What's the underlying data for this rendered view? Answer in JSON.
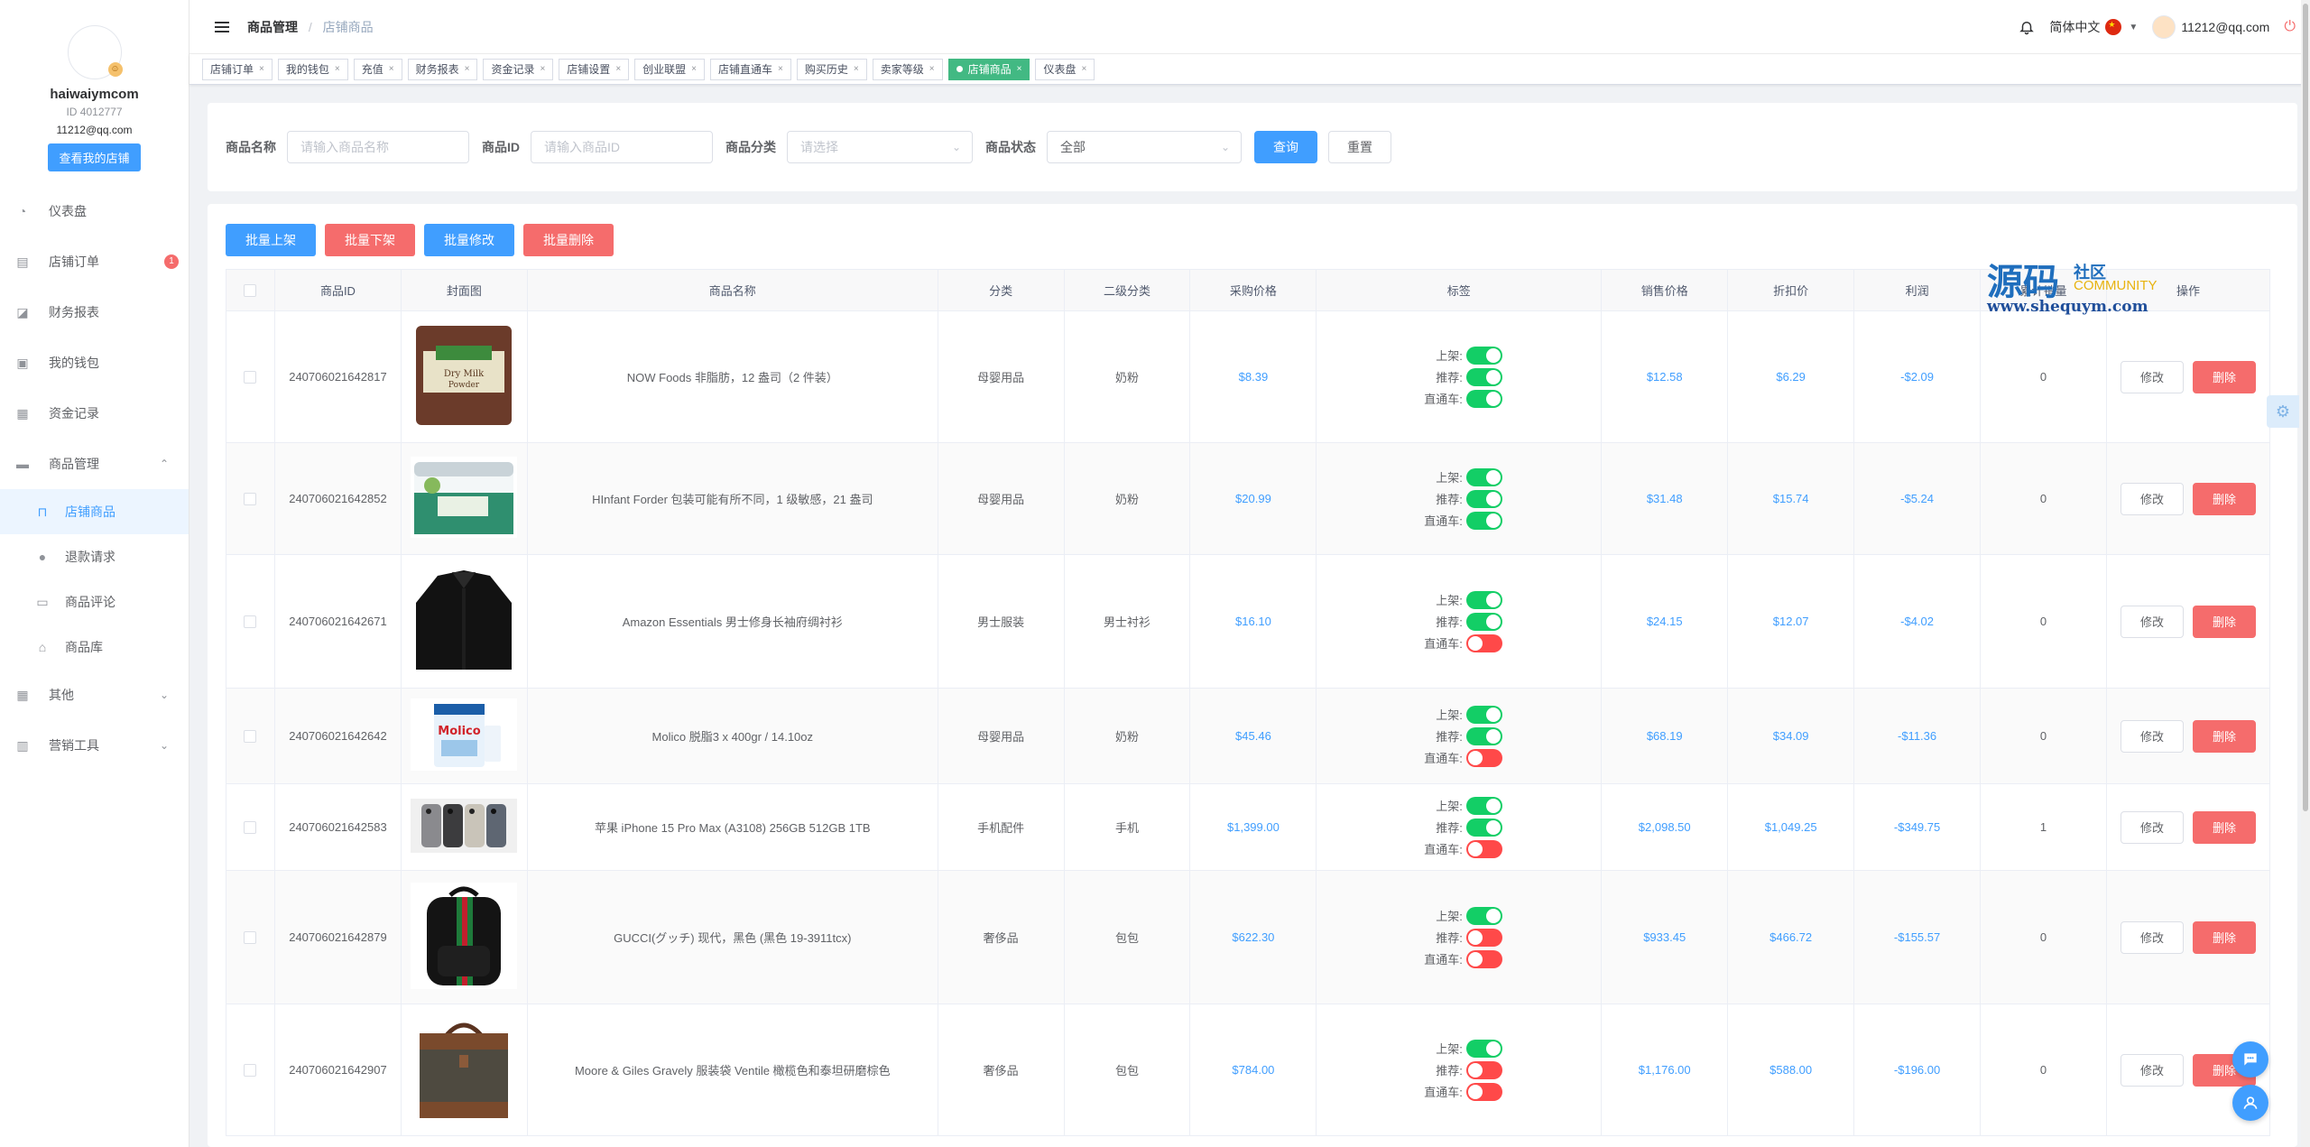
{
  "sidebar": {
    "username": "haiwaiymcom",
    "user_id": "ID 4012777",
    "email": "11212@qq.com",
    "shop_button": "查看我的店铺",
    "menu": [
      {
        "key": "dashboard",
        "label": "仪表盘",
        "icon": "dashboard-icon"
      },
      {
        "key": "orders",
        "label": "店铺订单",
        "icon": "orders-icon",
        "badge": "1"
      },
      {
        "key": "finance",
        "label": "财务报表",
        "icon": "chart-icon"
      },
      {
        "key": "wallet",
        "label": "我的钱包",
        "icon": "wallet-icon"
      },
      {
        "key": "funds",
        "label": "资金记录",
        "icon": "record-icon"
      },
      {
        "key": "products",
        "label": "商品管理",
        "icon": "briefcase-icon",
        "expanded": true
      }
    ],
    "submenu": [
      {
        "key": "shop-products",
        "label": "店铺商品",
        "icon": "bag-icon",
        "active": true
      },
      {
        "key": "refunds",
        "label": "退款请求",
        "icon": "alert-icon"
      },
      {
        "key": "reviews",
        "label": "商品评论",
        "icon": "comment-icon"
      },
      {
        "key": "library",
        "label": "商品库",
        "icon": "home-icon"
      }
    ],
    "menu_bottom": [
      {
        "key": "other",
        "label": "其他",
        "icon": "grid-icon"
      },
      {
        "key": "marketing",
        "label": "营销工具",
        "icon": "bar-chart-icon"
      }
    ]
  },
  "header": {
    "breadcrumb_1": "商品管理",
    "breadcrumb_sep": "/",
    "breadcrumb_2": "店铺商品",
    "language": "简体中文",
    "user_email": "11212@qq.com"
  },
  "tags": [
    {
      "label": "店铺订单",
      "active": false
    },
    {
      "label": "我的钱包",
      "active": false
    },
    {
      "label": "充值",
      "active": false
    },
    {
      "label": "财务报表",
      "active": false
    },
    {
      "label": "资金记录",
      "active": false
    },
    {
      "label": "店铺设置",
      "active": false
    },
    {
      "label": "创业联盟",
      "active": false
    },
    {
      "label": "店铺直通车",
      "active": false
    },
    {
      "label": "购买历史",
      "active": false
    },
    {
      "label": "卖家等级",
      "active": false
    },
    {
      "label": "店铺商品",
      "active": true
    },
    {
      "label": "仪表盘",
      "active": false
    }
  ],
  "search": {
    "name_label": "商品名称",
    "name_placeholder": "请输入商品名称",
    "id_label": "商品ID",
    "id_placeholder": "请输入商品ID",
    "category_label": "商品分类",
    "category_placeholder": "请选择",
    "status_label": "商品状态",
    "status_value": "全部",
    "query_button": "查询",
    "reset_button": "重置"
  },
  "batch": {
    "shelve": "批量上架",
    "unshelve": "批量下架",
    "edit": "批量修改",
    "delete": "批量删除"
  },
  "table": {
    "headers": {
      "id": "商品ID",
      "cover": "封面图",
      "name": "商品名称",
      "category": "分类",
      "subcategory": "二级分类",
      "purchase": "采购价格",
      "tags": "标签",
      "sale": "销售价格",
      "discount": "折扣价",
      "profit": "利润",
      "sold": "累计销量",
      "ops": "操作"
    },
    "switch_labels": {
      "on_shelf": "上架:",
      "recommend": "推荐:",
      "express": "直通车:"
    },
    "edit_label": "修改",
    "delete_label": "删除",
    "rows": [
      {
        "id": "240706021642817",
        "name": "NOW Foods 非脂肪，12 盎司（2 件装）",
        "category": "母婴用品",
        "subcategory": "奶粉",
        "purchase": "$8.39",
        "on_shelf": true,
        "recommend": true,
        "express": true,
        "sale": "$12.58",
        "discount": "$6.29",
        "profit": "-$2.09",
        "sold": "0",
        "thumb": "milk-powder-bag",
        "h": 146
      },
      {
        "id": "240706021642852",
        "name": "HInfant Forder 包装可能有所不同，1 级敏感，21 盎司",
        "category": "母婴用品",
        "subcategory": "奶粉",
        "purchase": "$20.99",
        "on_shelf": true,
        "recommend": true,
        "express": true,
        "sale": "$31.48",
        "discount": "$15.74",
        "profit": "-$5.24",
        "sold": "0",
        "thumb": "formula-tub",
        "h": 124
      },
      {
        "id": "240706021642671",
        "name": "Amazon Essentials 男士修身长袖府绸衬衫",
        "category": "男士服装",
        "subcategory": "男士衬衫",
        "purchase": "$16.10",
        "on_shelf": true,
        "recommend": true,
        "express": false,
        "sale": "$24.15",
        "discount": "$12.07",
        "profit": "-$4.02",
        "sold": "0",
        "thumb": "black-shirt",
        "h": 148
      },
      {
        "id": "240706021642642",
        "name": "Molico 脱脂3 x 400gr / 14.10oz",
        "category": "母婴用品",
        "subcategory": "奶粉",
        "purchase": "$45.46",
        "on_shelf": true,
        "recommend": true,
        "express": false,
        "sale": "$68.19",
        "discount": "$34.09",
        "profit": "-$11.36",
        "sold": "0",
        "thumb": "molico-can",
        "h": 106
      },
      {
        "id": "240706021642583",
        "name": "苹果 iPhone 15 Pro Max (A3108) 256GB 512GB 1TB",
        "category": "手机配件",
        "subcategory": "手机",
        "purchase": "$1,399.00",
        "on_shelf": true,
        "recommend": true,
        "express": false,
        "sale": "$2,098.50",
        "discount": "$1,049.25",
        "profit": "-$349.75",
        "sold": "1",
        "thumb": "iphones",
        "h": 96
      },
      {
        "id": "240706021642879",
        "name": "GUCCI(グッチ) 现代，黑色 (黑色 19-3911tcx)",
        "category": "奢侈品",
        "subcategory": "包包",
        "purchase": "$622.30",
        "on_shelf": true,
        "recommend": false,
        "express": false,
        "sale": "$933.45",
        "discount": "$466.72",
        "profit": "-$155.57",
        "sold": "0",
        "thumb": "gucci-backpack",
        "h": 148
      },
      {
        "id": "240706021642907",
        "name": "Moore & Giles Gravely 服装袋 Ventile 橄榄色和泰坦研磨棕色",
        "category": "奢侈品",
        "subcategory": "包包",
        "purchase": "$784.00",
        "on_shelf": true,
        "recommend": false,
        "express": false,
        "sale": "$1,176.00",
        "discount": "$588.00",
        "profit": "-$196.00",
        "sold": "0",
        "thumb": "leather-bag",
        "h": 146
      }
    ]
  },
  "watermark": {
    "big": "源码",
    "small": "社区",
    "community": "COMMUNITY",
    "url": "www.shequym.com"
  },
  "colors": {
    "primary": "#409eff",
    "danger": "#f56c6c",
    "switch_on": "#13ce66",
    "switch_off": "#ff4949",
    "active_tag": "#42b983"
  }
}
